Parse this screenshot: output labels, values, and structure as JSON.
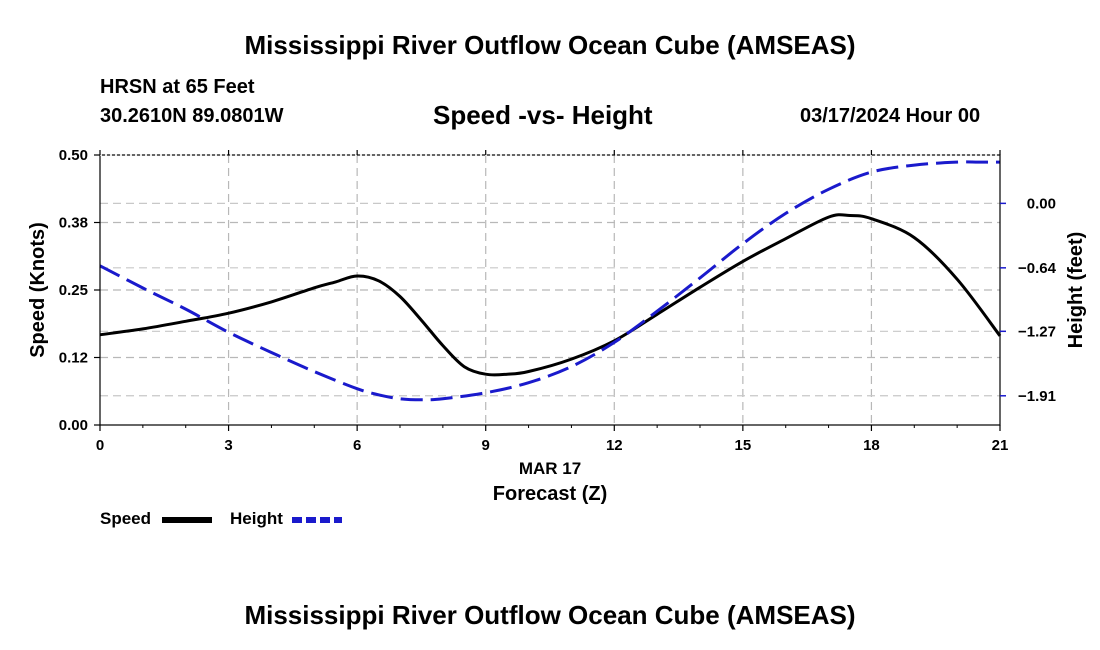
{
  "header": {
    "title": "Mississippi River Outflow Ocean Cube (AMSEAS)",
    "station": "HRSN at 65 Feet",
    "coordinates": "30.2610N  89.0801W",
    "chart_title": "Speed -vs- Height",
    "datetime": "03/17/2024 Hour 00"
  },
  "footer": {
    "title": "Mississippi River Outflow Ocean Cube (AMSEAS)"
  },
  "chart_data": {
    "type": "line",
    "title": "Speed -vs- Height",
    "xlabel": "Forecast (Z)",
    "xlabel_date": "MAR 17",
    "ylabel": "Speed (Knots)",
    "y2label": "Height (feet)",
    "xlim": [
      0,
      21
    ],
    "ylim": [
      0,
      0.5
    ],
    "y2lim": [
      -2.2,
      0.48
    ],
    "x_ticks": [
      0,
      3,
      6,
      9,
      12,
      15,
      18,
      21
    ],
    "x_tick_labels": [
      "0",
      "3",
      "6",
      "9",
      "12",
      "15",
      "18",
      "21"
    ],
    "y_ticks": [
      0,
      0.125,
      0.25,
      0.375,
      0.5
    ],
    "y_tick_labels": [
      "0.00",
      "0.12",
      "0.25",
      "0.38",
      "0.50"
    ],
    "y2_ticks": [
      0.0,
      -0.64,
      -1.27,
      -1.91
    ],
    "y2_tick_labels": [
      "0.00",
      "−0.64",
      "−1.27",
      "−1.91"
    ],
    "grid": true,
    "legend": "bottom-left",
    "series": [
      {
        "name": "Speed",
        "axis": "left",
        "color": "#000000",
        "style": "solid",
        "x": [
          0,
          1,
          2,
          3,
          4,
          5,
          5.5,
          6,
          6.5,
          7,
          7.5,
          8,
          8.5,
          9,
          9.5,
          10,
          11,
          12,
          13,
          14,
          15,
          16,
          17,
          17.5,
          18,
          19,
          20,
          21
        ],
        "values": [
          0.167,
          0.178,
          0.192,
          0.207,
          0.228,
          0.254,
          0.265,
          0.276,
          0.267,
          0.238,
          0.194,
          0.147,
          0.108,
          0.094,
          0.094,
          0.099,
          0.122,
          0.156,
          0.205,
          0.255,
          0.303,
          0.345,
          0.385,
          0.388,
          0.382,
          0.347,
          0.27,
          0.165
        ]
      },
      {
        "name": "Height",
        "axis": "right",
        "color": "#1a1acc",
        "style": "dashed",
        "x": [
          0,
          1,
          2,
          3,
          4,
          5,
          6,
          6.5,
          7,
          7.5,
          8,
          9,
          10,
          11,
          12,
          13,
          14,
          15,
          16,
          17,
          18,
          19,
          20,
          20.5,
          21
        ],
        "values": [
          -0.62,
          -0.84,
          -1.05,
          -1.28,
          -1.48,
          -1.67,
          -1.84,
          -1.9,
          -1.94,
          -1.95,
          -1.94,
          -1.88,
          -1.78,
          -1.62,
          -1.38,
          -1.07,
          -0.74,
          -0.4,
          -0.1,
          0.14,
          0.31,
          0.38,
          0.41,
          0.41,
          0.41
        ]
      }
    ]
  }
}
